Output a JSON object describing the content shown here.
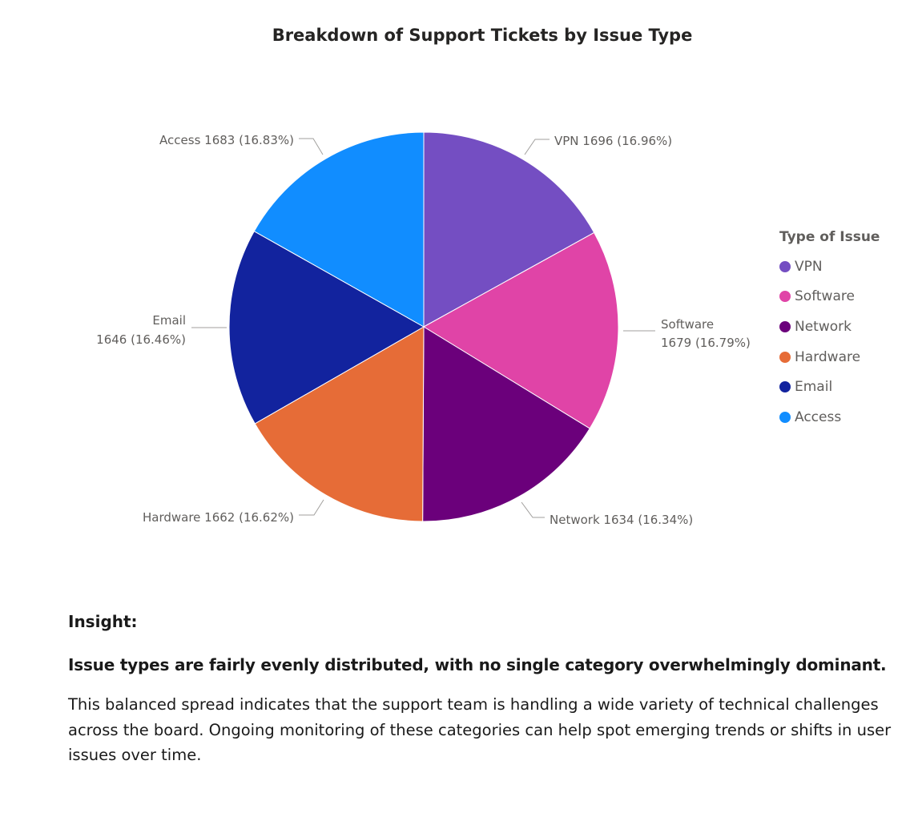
{
  "chart_data": {
    "type": "pie",
    "title": "Breakdown of Support Tickets by Issue Type",
    "legend_title": "Type of Issue",
    "legend_position": "right",
    "slices": [
      {
        "name": "VPN",
        "value": 1696,
        "percent": "16.96%",
        "color": "#744EC2",
        "label": "VPN 1696 (16.96%)"
      },
      {
        "name": "Software",
        "value": 1679,
        "percent": "16.79%",
        "color": "#E044A7",
        "label_lines": [
          "Software",
          "1679 (16.79%)"
        ]
      },
      {
        "name": "Network",
        "value": 1634,
        "percent": "16.34%",
        "color": "#6B007B",
        "label": "Network 1634 (16.34%)"
      },
      {
        "name": "Hardware",
        "value": 1662,
        "percent": "16.62%",
        "color": "#E66C37",
        "label": "Hardware 1662 (16.62%)"
      },
      {
        "name": "Email",
        "value": 1646,
        "percent": "16.46%",
        "color": "#12239E",
        "label_lines": [
          "Email",
          "1646 (16.46%)"
        ]
      },
      {
        "name": "Access",
        "value": 1683,
        "percent": "16.83%",
        "color": "#118DFF",
        "label": "Access 1683 (16.83%)"
      }
    ]
  },
  "insight": {
    "heading": "Insight:",
    "headline": "Issue types are fairly evenly distributed, with no single category overwhelmingly dominant.",
    "body": "This balanced spread indicates that the support team is handling a wide variety of technical challenges across the board. Ongoing monitoring of these categories can help spot emerging trends or shifts in user issues over time."
  }
}
